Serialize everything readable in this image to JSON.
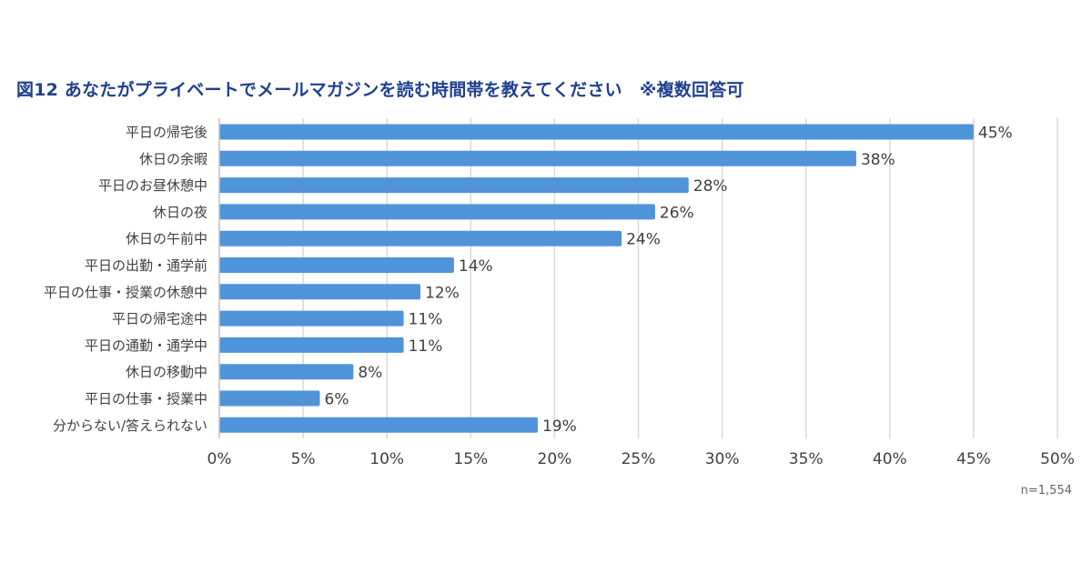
{
  "title": "図12  あなたがプライベートでメールマガジンを読む時間帯を教えてください　※複数回答可",
  "note": "n=1,554",
  "colors": {
    "bar": "#4f94d9",
    "grid": "#d9d9d9",
    "title": "#1f3f8f",
    "text": "#404040"
  },
  "chart_data": {
    "type": "bar",
    "orientation": "horizontal",
    "categories": [
      "平日の帰宅後",
      "休日の余暇",
      "平日のお昼休憩中",
      "休日の夜",
      "休日の午前中",
      "平日の出勤・通学前",
      "平日の仕事・授業の休憩中",
      "平日の帰宅途中",
      "平日の通勤・通学中",
      "休日の移動中",
      "平日の仕事・授業中",
      "分からない/答えられない"
    ],
    "values": [
      45,
      38,
      28,
      26,
      24,
      14,
      12,
      11,
      11,
      8,
      6,
      19
    ],
    "data_labels": [
      "45%",
      "38%",
      "28%",
      "26%",
      "24%",
      "14%",
      "12%",
      "11%",
      "11%",
      "8%",
      "6%",
      "19%"
    ],
    "xticks": [
      0,
      5,
      10,
      15,
      20,
      25,
      30,
      35,
      40,
      45,
      50
    ],
    "xtick_labels": [
      "0%",
      "5%",
      "10%",
      "15%",
      "20%",
      "25%",
      "30%",
      "35%",
      "40%",
      "45%",
      "50%"
    ],
    "xlim": [
      0,
      50
    ],
    "grid": true
  }
}
